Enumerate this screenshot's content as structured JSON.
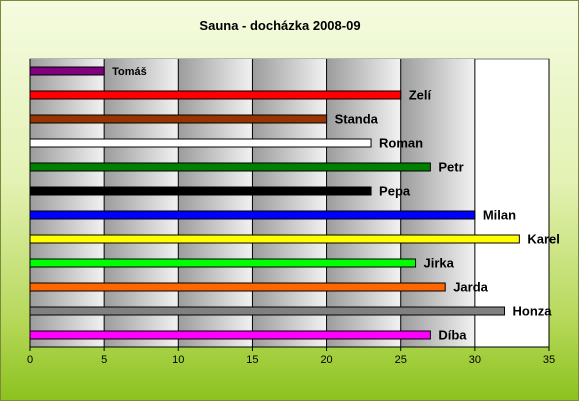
{
  "chart_data": {
    "type": "bar",
    "orientation": "horizontal",
    "title": "Sauna - docházka 2008-09",
    "xlim": [
      0,
      35
    ],
    "x_ticks": [
      0,
      5,
      10,
      15,
      20,
      25,
      30,
      35
    ],
    "grid": true,
    "legend": "none",
    "categories": [
      "Tomáš",
      "Zelí",
      "Standa",
      "Roman",
      "Petr",
      "Pepa",
      "Milan",
      "Karel",
      "Jirka",
      "Jarda",
      "Honza",
      "Díba"
    ],
    "values": [
      5,
      25,
      20,
      23,
      27,
      23,
      30,
      33,
      26,
      28,
      32,
      27
    ],
    "colors": [
      "#800080",
      "#ff0000",
      "#993300",
      "#ffffff",
      "#008000",
      "#000000",
      "#0000ff",
      "#ffff00",
      "#00ff00",
      "#ff6600",
      "#808080",
      "#ff00ff"
    ]
  }
}
